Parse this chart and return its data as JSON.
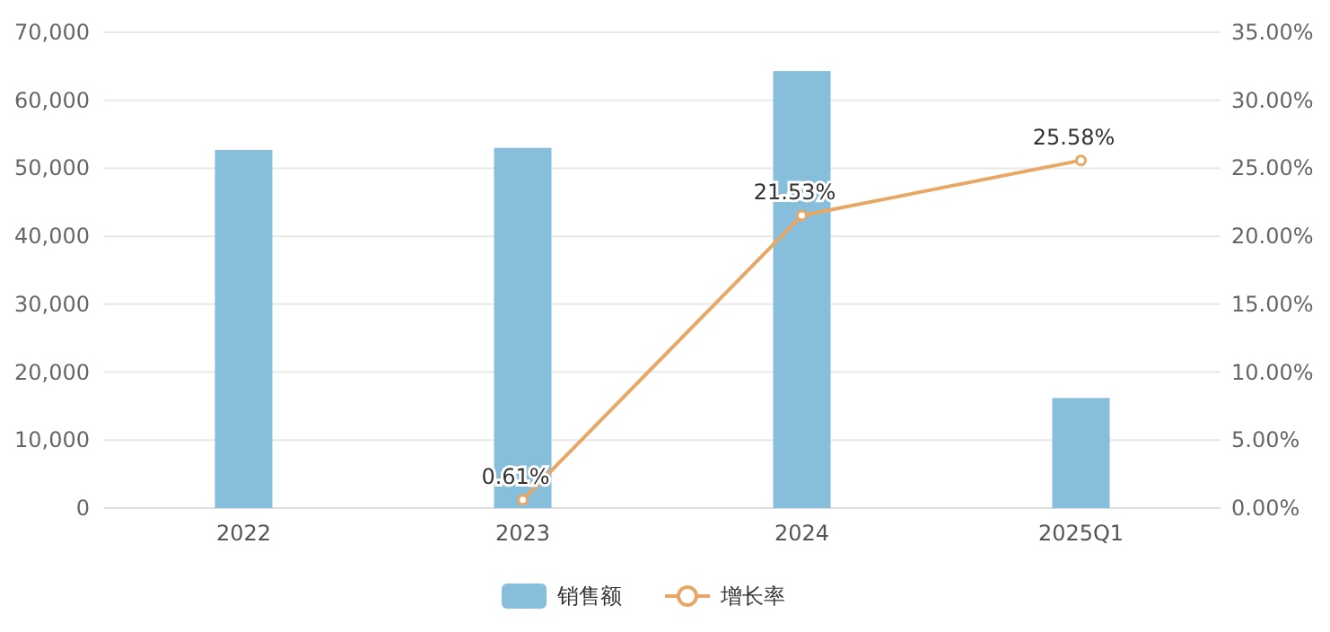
{
  "chart_data": {
    "type": "bar",
    "categories": [
      "2022",
      "2023",
      "2024",
      "2025Q1"
    ],
    "series": [
      {
        "name": "销售额",
        "color": "#86bedb",
        "values": [
          52700,
          53000,
          64300,
          16200
        ]
      },
      {
        "name": "增长率",
        "type": "line",
        "axis": "y2",
        "color": "#e8a764",
        "marker": "circle",
        "values": [
          null,
          0.61,
          21.53,
          25.58
        ],
        "value_labels": [
          null,
          "0.61%",
          "21.53%",
          "25.58%"
        ]
      }
    ],
    "ylim": [
      0,
      70000
    ],
    "yticks": [
      {
        "value": 0,
        "label": "0"
      },
      {
        "value": 10000,
        "label": "10,000"
      },
      {
        "value": 20000,
        "label": "20,000"
      },
      {
        "value": 30000,
        "label": "30,000"
      },
      {
        "value": 40000,
        "label": "40,000"
      },
      {
        "value": 50000,
        "label": "50,000"
      },
      {
        "value": 60000,
        "label": "60,000"
      },
      {
        "value": 70000,
        "label": "70,000"
      }
    ],
    "y2lim": [
      0,
      35
    ],
    "y2ticks": [
      {
        "value": 0,
        "label": "0.00%"
      },
      {
        "value": 5,
        "label": "5.00%"
      },
      {
        "value": 10,
        "label": "10.00%"
      },
      {
        "value": 15,
        "label": "15.00%"
      },
      {
        "value": 20,
        "label": "20.00%"
      },
      {
        "value": 25,
        "label": "25.00%"
      },
      {
        "value": 30,
        "label": "30.00%"
      },
      {
        "value": 35,
        "label": "35.00%"
      }
    ],
    "grid": "y",
    "legend": "bottom"
  }
}
